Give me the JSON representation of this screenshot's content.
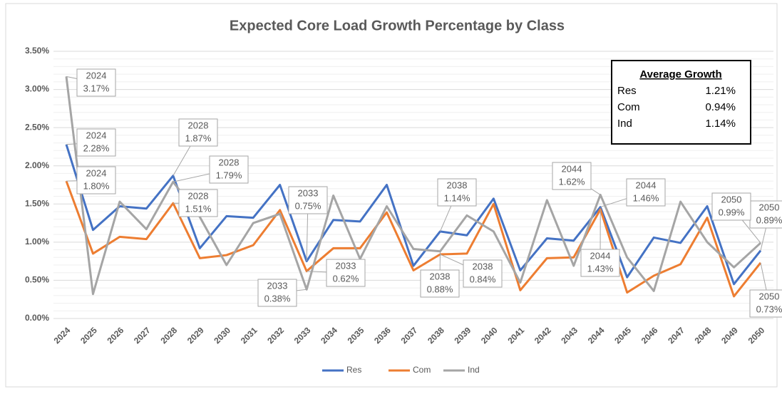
{
  "chart_data": {
    "type": "line",
    "title": "Expected Core Load Growth Percentage by Class",
    "categories": [
      "2024",
      "2025",
      "2026",
      "2027",
      "2028",
      "2029",
      "2030",
      "2031",
      "2032",
      "2033",
      "2034",
      "2035",
      "2036",
      "2037",
      "2038",
      "2039",
      "2040",
      "2041",
      "2042",
      "2043",
      "2044",
      "2045",
      "2046",
      "2047",
      "2048",
      "2049",
      "2050"
    ],
    "ylim": [
      0,
      3.5
    ],
    "yticks": [
      {
        "value": 0,
        "label": "0.00%"
      },
      {
        "value": 0.5,
        "label": "0.50%"
      },
      {
        "value": 1,
        "label": "1.00%"
      },
      {
        "value": 1.5,
        "label": "1.50%"
      },
      {
        "value": 2,
        "label": "2.00%"
      },
      {
        "value": 2.5,
        "label": "2.50%"
      },
      {
        "value": 3,
        "label": "3.00%"
      },
      {
        "value": 3.5,
        "label": "3.50%"
      }
    ],
    "grid": true,
    "legend": "bottom",
    "series": [
      {
        "name": "Res",
        "color": "#4472c4",
        "values": [
          2.28,
          1.16,
          1.47,
          1.44,
          1.87,
          0.92,
          1.34,
          1.32,
          1.75,
          0.75,
          1.29,
          1.27,
          1.75,
          0.69,
          1.14,
          1.09,
          1.57,
          0.63,
          1.05,
          1.02,
          1.46,
          0.54,
          1.06,
          0.99,
          1.47,
          0.45,
          0.89
        ],
        "value_labels": [
          "2.28%",
          null,
          null,
          null,
          "1.87%",
          null,
          null,
          null,
          null,
          "0.75%",
          null,
          null,
          null,
          null,
          "1.14%",
          null,
          null,
          null,
          null,
          null,
          "1.46%",
          null,
          null,
          null,
          null,
          null,
          "0.89%"
        ]
      },
      {
        "name": "Com",
        "color": "#ed7d31",
        "values": [
          1.8,
          0.85,
          1.07,
          1.04,
          1.51,
          0.79,
          0.83,
          0.96,
          1.42,
          0.62,
          0.92,
          0.92,
          1.39,
          0.63,
          0.84,
          0.85,
          1.5,
          0.37,
          0.79,
          0.8,
          1.43,
          0.34,
          0.56,
          0.71,
          1.32,
          0.29,
          0.73
        ],
        "value_labels": [
          "1.80%",
          null,
          null,
          null,
          "1.51%",
          null,
          null,
          null,
          null,
          "0.62%",
          null,
          null,
          null,
          null,
          "0.84%",
          null,
          null,
          null,
          null,
          null,
          "1.43%",
          null,
          null,
          null,
          null,
          null,
          "0.73%"
        ]
      },
      {
        "name": "Ind",
        "color": "#a5a5a5",
        "values": [
          3.17,
          0.32,
          1.53,
          1.17,
          1.79,
          1.33,
          0.7,
          1.25,
          1.37,
          0.38,
          1.61,
          0.78,
          1.47,
          0.91,
          0.88,
          1.35,
          1.14,
          0.47,
          1.55,
          0.69,
          1.62,
          0.8,
          0.36,
          1.53,
          1.0,
          0.67,
          0.99
        ],
        "value_labels": [
          "3.17%",
          null,
          null,
          null,
          "1.79%",
          null,
          null,
          null,
          null,
          "0.38%",
          null,
          null,
          null,
          null,
          "0.88%",
          null,
          null,
          null,
          null,
          null,
          "1.62%",
          null,
          null,
          null,
          null,
          null,
          "0.99%"
        ]
      }
    ],
    "summary": {
      "title": "Average Growth",
      "rows": [
        [
          "Res",
          "1.21%"
        ],
        [
          "Com",
          "0.94%"
        ],
        [
          "Ind",
          "1.14%"
        ]
      ]
    }
  }
}
